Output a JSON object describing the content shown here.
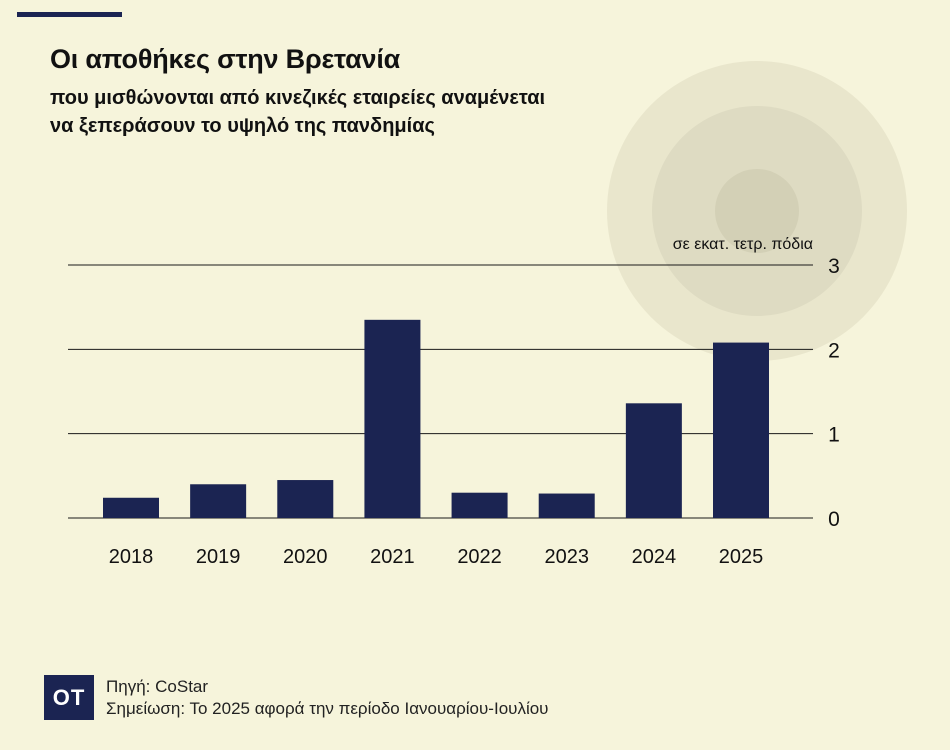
{
  "colors": {
    "background": "#f6f4db",
    "bar": "#1b2452",
    "watermark_outer": "#e9e6cc",
    "watermark_mid": "#dedbc2",
    "watermark_inner": "#d3d0b6"
  },
  "header": {
    "title": "Οι αποθήκες στην Βρετανία",
    "subtitle_line1": "που μισθώνονται από κινεζικές εταιρείες αναμένεται",
    "subtitle_line2": "να ξεπεράσουν το υψηλό της πανδημίας"
  },
  "chart_data": {
    "type": "bar",
    "categories": [
      "2018",
      "2019",
      "2020",
      "2021",
      "2022",
      "2023",
      "2024",
      "2025"
    ],
    "values": [
      0.24,
      0.4,
      0.45,
      2.35,
      0.3,
      0.29,
      1.36,
      2.08
    ],
    "ylabel": "σε εκατ. τετρ. πόδια",
    "ylim": [
      0,
      3
    ],
    "yticks": [
      0,
      1,
      2,
      3
    ],
    "ytick_labels": [
      "0",
      "1",
      "2",
      "3"
    ],
    "grid": true,
    "y_axis_position": "right"
  },
  "footer": {
    "logo": "OT",
    "source": "Πηγή: CoStar",
    "note": "Σημείωση: Το 2025 αφορά την περίοδο Ιανουαρίου-Ιουλίου"
  }
}
